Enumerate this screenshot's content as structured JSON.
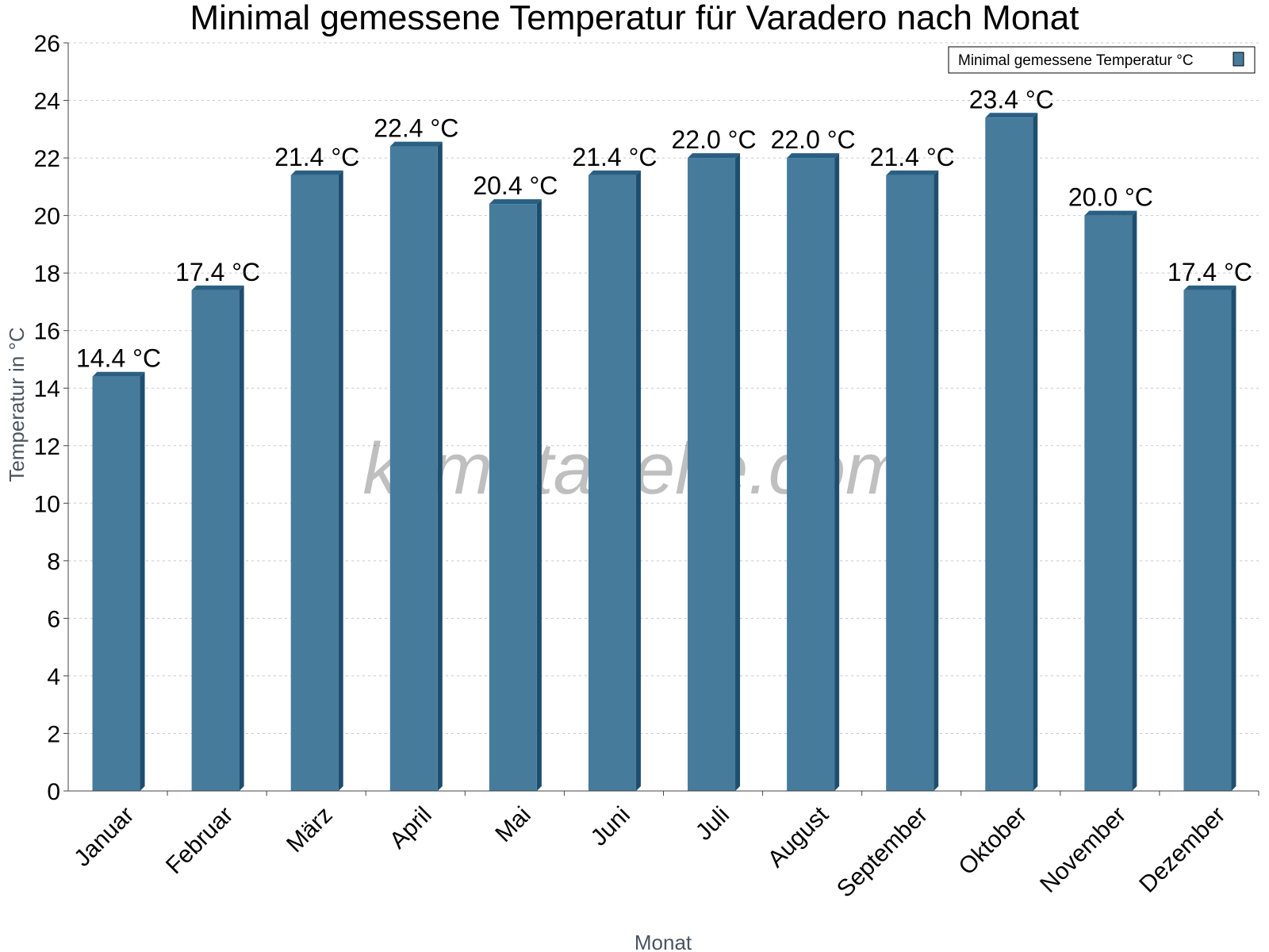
{
  "title": "Minimal gemessene Temperatur für Varadero nach Monat",
  "watermark": "klimatabelle.com",
  "colors": {
    "bar_front": "#467b9c",
    "bar_side": "#1e4e6e",
    "bar_top": "#2a5f83",
    "grid": "#c8c8c8",
    "axis": "#444444"
  },
  "chart_data": {
    "type": "bar",
    "title": "Minimal gemessene Temperatur für Varadero nach Monat",
    "xlabel": "Monat",
    "ylabel": "Temperatur in °C",
    "categories": [
      "Januar",
      "Februar",
      "März",
      "April",
      "Mai",
      "Juni",
      "Juli",
      "August",
      "September",
      "Oktober",
      "November",
      "Dezember"
    ],
    "series": [
      {
        "name": "Minimal gemessene Temperatur °C",
        "values": [
          14.4,
          17.4,
          21.4,
          22.4,
          20.4,
          21.4,
          22.0,
          22.0,
          21.4,
          23.4,
          20.0,
          17.4
        ],
        "labels": [
          "14.4 °C",
          "17.4 °C",
          "21.4 °C",
          "22.4 °C",
          "20.4 °C",
          "21.4 °C",
          "22.0 °C",
          "22.0 °C",
          "21.4 °C",
          "23.4 °C",
          "20.0 °C",
          "17.4 °C"
        ]
      }
    ],
    "ylim": [
      0,
      26
    ],
    "yticks": [
      "0",
      "2",
      "4",
      "6",
      "8",
      "10",
      "12",
      "14",
      "16",
      "18",
      "20",
      "22",
      "24",
      "26"
    ],
    "grid": true,
    "legend": "top-right"
  }
}
